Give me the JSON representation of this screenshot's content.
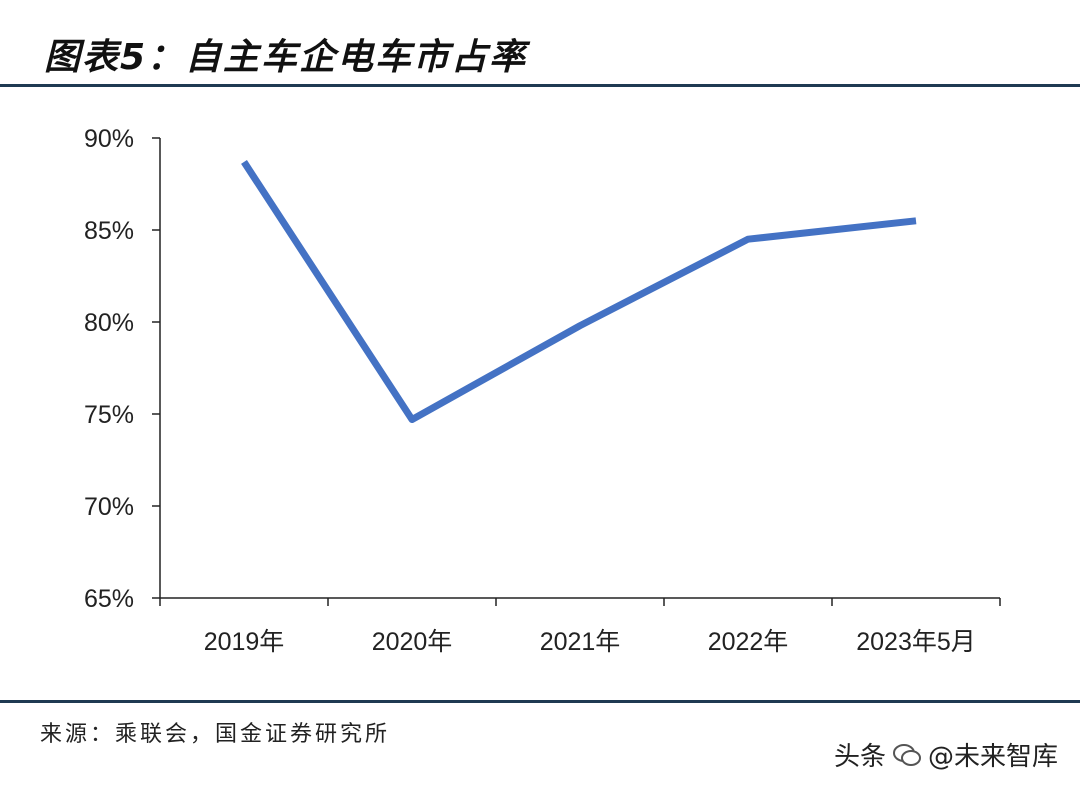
{
  "header": {
    "title": "图表5：自主车企电车市占率"
  },
  "footer": {
    "source": "来源：乘联会，国金证券研究所",
    "watermark_prefix": "头条",
    "watermark_name": "@未来智库"
  },
  "chart_data": {
    "type": "line",
    "title": "",
    "xlabel": "",
    "ylabel": "",
    "categories": [
      "2019年",
      "2020年",
      "2021年",
      "2022年",
      "2023年5月"
    ],
    "series": [
      {
        "values": [
          88.7,
          74.7,
          79.8,
          84.5,
          85.5
        ],
        "color": "#4472c4"
      }
    ],
    "ylim": [
      65,
      90
    ],
    "yticks": [
      "65%",
      "70%",
      "75%",
      "80%",
      "85%",
      "90%"
    ],
    "ytick_values": [
      65,
      70,
      75,
      80,
      85,
      90
    ],
    "grid": false,
    "legend": "none"
  }
}
